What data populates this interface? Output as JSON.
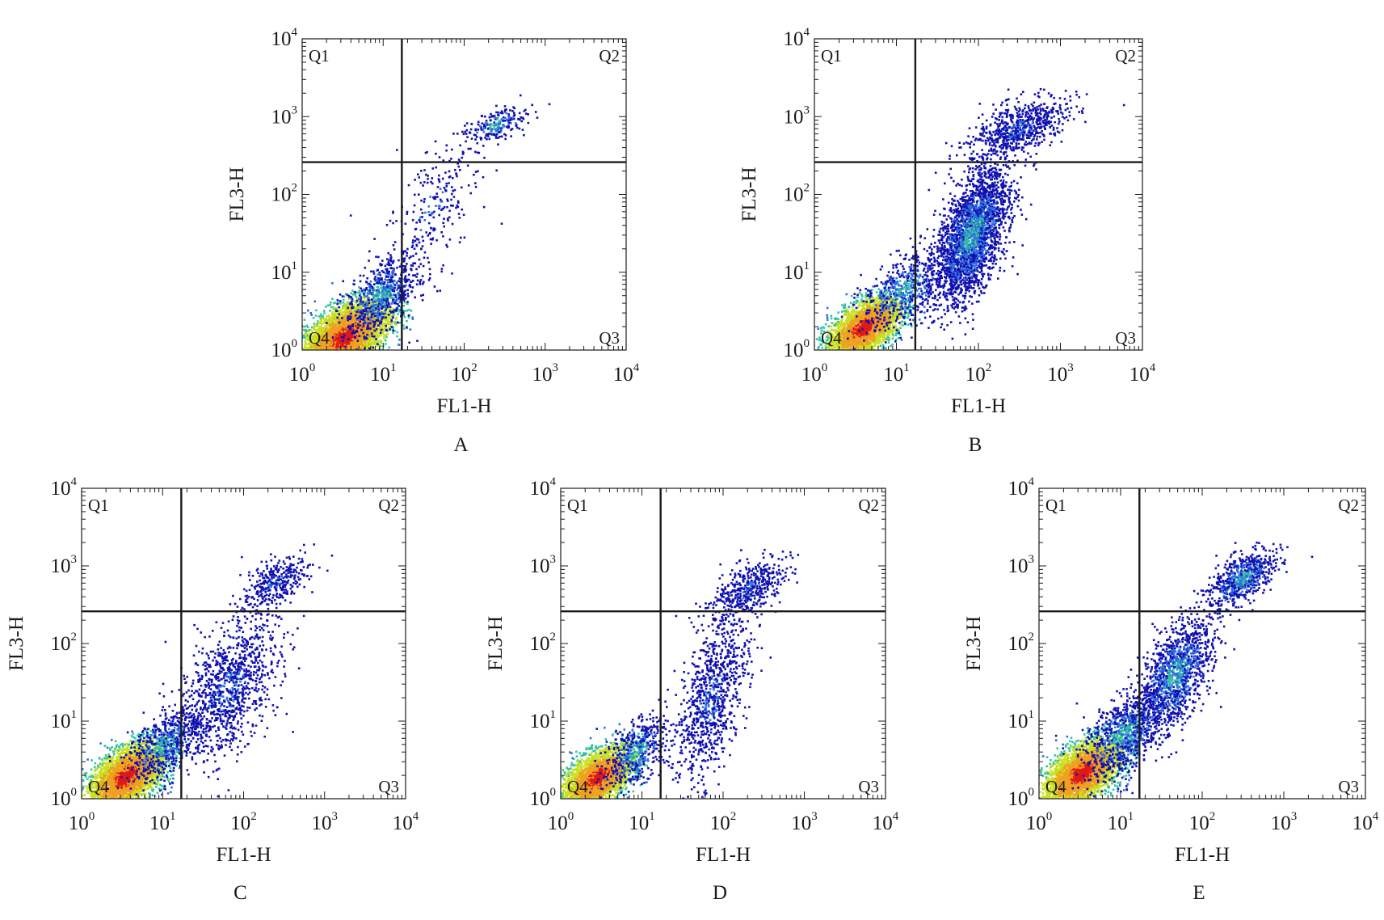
{
  "figure": {
    "type": "flow-cytometry-dot-plot-panels"
  },
  "colors": {
    "density_low": "#1010b0",
    "density_mid_low": "#2f6fe0",
    "density_mid": "#33c3a0",
    "density_mid_high": "#c8e020",
    "density_high": "#f0a020",
    "density_peak": "#e01818",
    "frame": "#1a1a1a"
  },
  "chart_data": [
    {
      "type": "scatter",
      "panel_label": "A",
      "xlabel": "FL1-H",
      "ylabel": "FL3-H",
      "x_scale": "log",
      "y_scale": "log",
      "xlim": [
        1,
        10000
      ],
      "ylim": [
        1,
        10000
      ],
      "x_ticks": [
        {
          "base": "10",
          "exp": "0"
        },
        {
          "base": "10",
          "exp": "1"
        },
        {
          "base": "10",
          "exp": "2"
        },
        {
          "base": "10",
          "exp": "3"
        },
        {
          "base": "10",
          "exp": "4"
        }
      ],
      "y_ticks": [
        {
          "base": "10",
          "exp": "0"
        },
        {
          "base": "10",
          "exp": "1"
        },
        {
          "base": "10",
          "exp": "2"
        },
        {
          "base": "10",
          "exp": "3"
        },
        {
          "base": "10",
          "exp": "4"
        }
      ],
      "quadrant_gate": {
        "x": 17,
        "y": 260
      },
      "quadrant_labels": [
        "Q1",
        "Q2",
        "Q3",
        "Q4"
      ],
      "populations": [
        {
          "center_x": 3.3,
          "center_y": 1.5,
          "spread_x": 0.28,
          "spread_y": 0.24,
          "count": 3800,
          "density": "high"
        },
        {
          "center_x": 9.0,
          "center_y": 5.0,
          "spread_x": 0.22,
          "spread_y": 0.25,
          "count": 700,
          "density": "medium"
        },
        {
          "center_x": 40,
          "center_y": 60,
          "spread_x": 0.3,
          "spread_y": 0.5,
          "count": 260,
          "density": "low"
        },
        {
          "center_x": 250,
          "center_y": 800,
          "spread_x": 0.18,
          "spread_y": 0.12,
          "count": 220,
          "density": "medium"
        }
      ]
    },
    {
      "type": "scatter",
      "panel_label": "B",
      "xlabel": "FL1-H",
      "ylabel": "FL3-H",
      "x_scale": "log",
      "y_scale": "log",
      "xlim": [
        1,
        10000
      ],
      "ylim": [
        1,
        10000
      ],
      "x_ticks": [
        {
          "base": "10",
          "exp": "0"
        },
        {
          "base": "10",
          "exp": "1"
        },
        {
          "base": "10",
          "exp": "2"
        },
        {
          "base": "10",
          "exp": "3"
        },
        {
          "base": "10",
          "exp": "4"
        }
      ],
      "y_ticks": [
        {
          "base": "10",
          "exp": "0"
        },
        {
          "base": "10",
          "exp": "1"
        },
        {
          "base": "10",
          "exp": "2"
        },
        {
          "base": "10",
          "exp": "3"
        },
        {
          "base": "10",
          "exp": "4"
        }
      ],
      "quadrant_gate": {
        "x": 17,
        "y": 260
      },
      "quadrant_labels": [
        "Q1",
        "Q2",
        "Q3",
        "Q4"
      ],
      "populations": [
        {
          "center_x": 4.0,
          "center_y": 2.0,
          "spread_x": 0.22,
          "spread_y": 0.2,
          "count": 2600,
          "density": "high"
        },
        {
          "center_x": 12,
          "center_y": 6,
          "spread_x": 0.25,
          "spread_y": 0.25,
          "count": 600,
          "density": "medium"
        },
        {
          "center_x": 80,
          "center_y": 30,
          "spread_x": 0.22,
          "spread_y": 0.42,
          "count": 2600,
          "density": "medium"
        },
        {
          "center_x": 300,
          "center_y": 700,
          "spread_x": 0.3,
          "spread_y": 0.2,
          "count": 700,
          "density": "low"
        }
      ]
    },
    {
      "type": "scatter",
      "panel_label": "C",
      "xlabel": "FL1-H",
      "ylabel": "FL3-H",
      "x_scale": "log",
      "y_scale": "log",
      "xlim": [
        1,
        10000
      ],
      "ylim": [
        1,
        10000
      ],
      "x_ticks": [
        {
          "base": "10",
          "exp": "0"
        },
        {
          "base": "10",
          "exp": "1"
        },
        {
          "base": "10",
          "exp": "2"
        },
        {
          "base": "10",
          "exp": "3"
        },
        {
          "base": "10",
          "exp": "4"
        }
      ],
      "y_ticks": [
        {
          "base": "10",
          "exp": "0"
        },
        {
          "base": "10",
          "exp": "1"
        },
        {
          "base": "10",
          "exp": "2"
        },
        {
          "base": "10",
          "exp": "3"
        },
        {
          "base": "10",
          "exp": "4"
        }
      ],
      "quadrant_gate": {
        "x": 17,
        "y": 260
      },
      "quadrant_labels": [
        "Q1",
        "Q2",
        "Q3",
        "Q4"
      ],
      "populations": [
        {
          "center_x": 3.5,
          "center_y": 2.0,
          "spread_x": 0.24,
          "spread_y": 0.22,
          "count": 3000,
          "density": "high"
        },
        {
          "center_x": 10,
          "center_y": 5,
          "spread_x": 0.22,
          "spread_y": 0.22,
          "count": 600,
          "density": "medium"
        },
        {
          "center_x": 60,
          "center_y": 25,
          "spread_x": 0.32,
          "spread_y": 0.45,
          "count": 1100,
          "density": "low"
        },
        {
          "center_x": 230,
          "center_y": 600,
          "spread_x": 0.2,
          "spread_y": 0.18,
          "count": 350,
          "density": "low"
        }
      ]
    },
    {
      "type": "scatter",
      "panel_label": "D",
      "xlabel": "FL1-H",
      "ylabel": "FL3-H",
      "x_scale": "log",
      "y_scale": "log",
      "xlim": [
        1,
        10000
      ],
      "ylim": [
        1,
        10000
      ],
      "x_ticks": [
        {
          "base": "10",
          "exp": "0"
        },
        {
          "base": "10",
          "exp": "1"
        },
        {
          "base": "10",
          "exp": "2"
        },
        {
          "base": "10",
          "exp": "3"
        },
        {
          "base": "10",
          "exp": "4"
        }
      ],
      "y_ticks": [
        {
          "base": "10",
          "exp": "0"
        },
        {
          "base": "10",
          "exp": "1"
        },
        {
          "base": "10",
          "exp": "2"
        },
        {
          "base": "10",
          "exp": "3"
        },
        {
          "base": "10",
          "exp": "4"
        }
      ],
      "quadrant_gate": {
        "x": 17,
        "y": 260
      },
      "quadrant_labels": [
        "Q1",
        "Q2",
        "Q3",
        "Q4"
      ],
      "populations": [
        {
          "center_x": 2.8,
          "center_y": 1.9,
          "spread_x": 0.22,
          "spread_y": 0.2,
          "count": 2600,
          "density": "high"
        },
        {
          "center_x": 8,
          "center_y": 4,
          "spread_x": 0.2,
          "spread_y": 0.22,
          "count": 500,
          "density": "medium"
        },
        {
          "center_x": 70,
          "center_y": 20,
          "spread_x": 0.22,
          "spread_y": 0.55,
          "count": 900,
          "density": "low"
        },
        {
          "center_x": 200,
          "center_y": 500,
          "spread_x": 0.22,
          "spread_y": 0.2,
          "count": 450,
          "density": "low"
        }
      ]
    },
    {
      "type": "scatter",
      "panel_label": "E",
      "xlabel": "FL1-H",
      "ylabel": "FL3-H",
      "x_scale": "log",
      "y_scale": "log",
      "xlim": [
        1,
        10000
      ],
      "ylim": [
        1,
        10000
      ],
      "x_ticks": [
        {
          "base": "10",
          "exp": "0"
        },
        {
          "base": "10",
          "exp": "1"
        },
        {
          "base": "10",
          "exp": "2"
        },
        {
          "base": "10",
          "exp": "3"
        },
        {
          "base": "10",
          "exp": "4"
        }
      ],
      "y_ticks": [
        {
          "base": "10",
          "exp": "0"
        },
        {
          "base": "10",
          "exp": "1"
        },
        {
          "base": "10",
          "exp": "2"
        },
        {
          "base": "10",
          "exp": "3"
        },
        {
          "base": "10",
          "exp": "4"
        }
      ],
      "quadrant_gate": {
        "x": 17,
        "y": 260
      },
      "quadrant_labels": [
        "Q1",
        "Q2",
        "Q3",
        "Q4"
      ],
      "populations": [
        {
          "center_x": 3.3,
          "center_y": 2.2,
          "spread_x": 0.24,
          "spread_y": 0.22,
          "count": 3000,
          "density": "high"
        },
        {
          "center_x": 11,
          "center_y": 7,
          "spread_x": 0.25,
          "spread_y": 0.28,
          "count": 900,
          "density": "medium"
        },
        {
          "center_x": 45,
          "center_y": 40,
          "spread_x": 0.22,
          "spread_y": 0.35,
          "count": 1300,
          "density": "medium"
        },
        {
          "center_x": 300,
          "center_y": 700,
          "spread_x": 0.2,
          "spread_y": 0.18,
          "count": 650,
          "density": "medium"
        }
      ]
    }
  ]
}
